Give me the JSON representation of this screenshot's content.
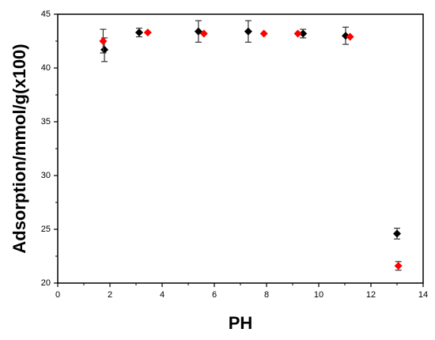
{
  "chart_data": {
    "type": "scatter",
    "x_label": "PH",
    "y_label": "Adsorption/mmol/g(x100)",
    "xlim": [
      0,
      14
    ],
    "xticks": [
      0,
      2,
      4,
      6,
      8,
      10,
      12,
      14
    ],
    "ylim": [
      20,
      45
    ],
    "yticks": [
      20,
      25,
      30,
      35,
      40,
      45
    ],
    "grid": false,
    "series": [
      {
        "color": "#000000",
        "marker": "diamond",
        "x": [
          1.79,
          3.12,
          5.39,
          7.3,
          9.4,
          11.03,
          13.0
        ],
        "values": [
          41.7,
          43.3,
          43.4,
          43.4,
          43.2,
          43.0,
          24.6
        ],
        "errors": [
          1.1,
          0.4,
          1.0,
          1.0,
          0.4,
          0.8,
          0.5
        ]
      },
      {
        "color": "#ff0000",
        "marker": "diamond",
        "x": [
          1.74,
          3.45,
          5.6,
          7.9,
          9.2,
          11.2,
          13.05
        ],
        "values": [
          42.5,
          43.3,
          43.2,
          43.2,
          43.2,
          42.9,
          21.6
        ],
        "errors": [
          1.1,
          null,
          null,
          null,
          null,
          null,
          0.4
        ]
      }
    ]
  }
}
